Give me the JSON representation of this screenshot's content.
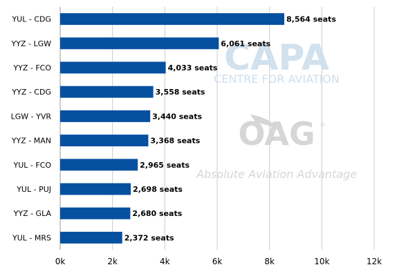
{
  "chart_data": {
    "type": "bar",
    "orientation": "horizontal",
    "title": "",
    "xlabel": "",
    "ylabel": "",
    "categories": [
      "YUL - CDG",
      "YYZ - LGW",
      "YYZ - FCO",
      "YYZ - CDG",
      "LGW - YVR",
      "YYZ - MAN",
      "YUL - FCO",
      "YUL - PUJ",
      "YYZ - GLA",
      "YUL - MRS"
    ],
    "values": [
      8564,
      6061,
      4033,
      3558,
      3440,
      3368,
      2965,
      2698,
      2680,
      2372
    ],
    "data_labels": [
      "8,564 seats",
      "6,061 seats",
      "4,033 seats",
      "3,558 seats",
      "3,440 seats",
      "3,368 seats",
      "2,965 seats",
      "2,698 seats",
      "2,680 seats",
      "2,372 seats"
    ],
    "xlim": [
      0,
      12000
    ],
    "xticks": [
      0,
      2000,
      4000,
      6000,
      8000,
      10000,
      12000
    ],
    "xtick_labels": [
      "0k",
      "2k",
      "4k",
      "6k",
      "8k",
      "10k",
      "12k"
    ],
    "grid": "vertical",
    "legend": "none",
    "bar_color": "#0650a0"
  },
  "watermarks": {
    "capa_logo": "CAPA",
    "capa_subtitle": "CENTRE FOR AVIATION",
    "oag_logo": "OAG",
    "oag_tagline": "Absolute Aviation Advantage"
  },
  "colors": {
    "grid": "#cccccc",
    "axis": "#666666",
    "text": "#000000",
    "capa_watermark": "#c9dcec",
    "oag_watermark": "#d6d6d6"
  }
}
